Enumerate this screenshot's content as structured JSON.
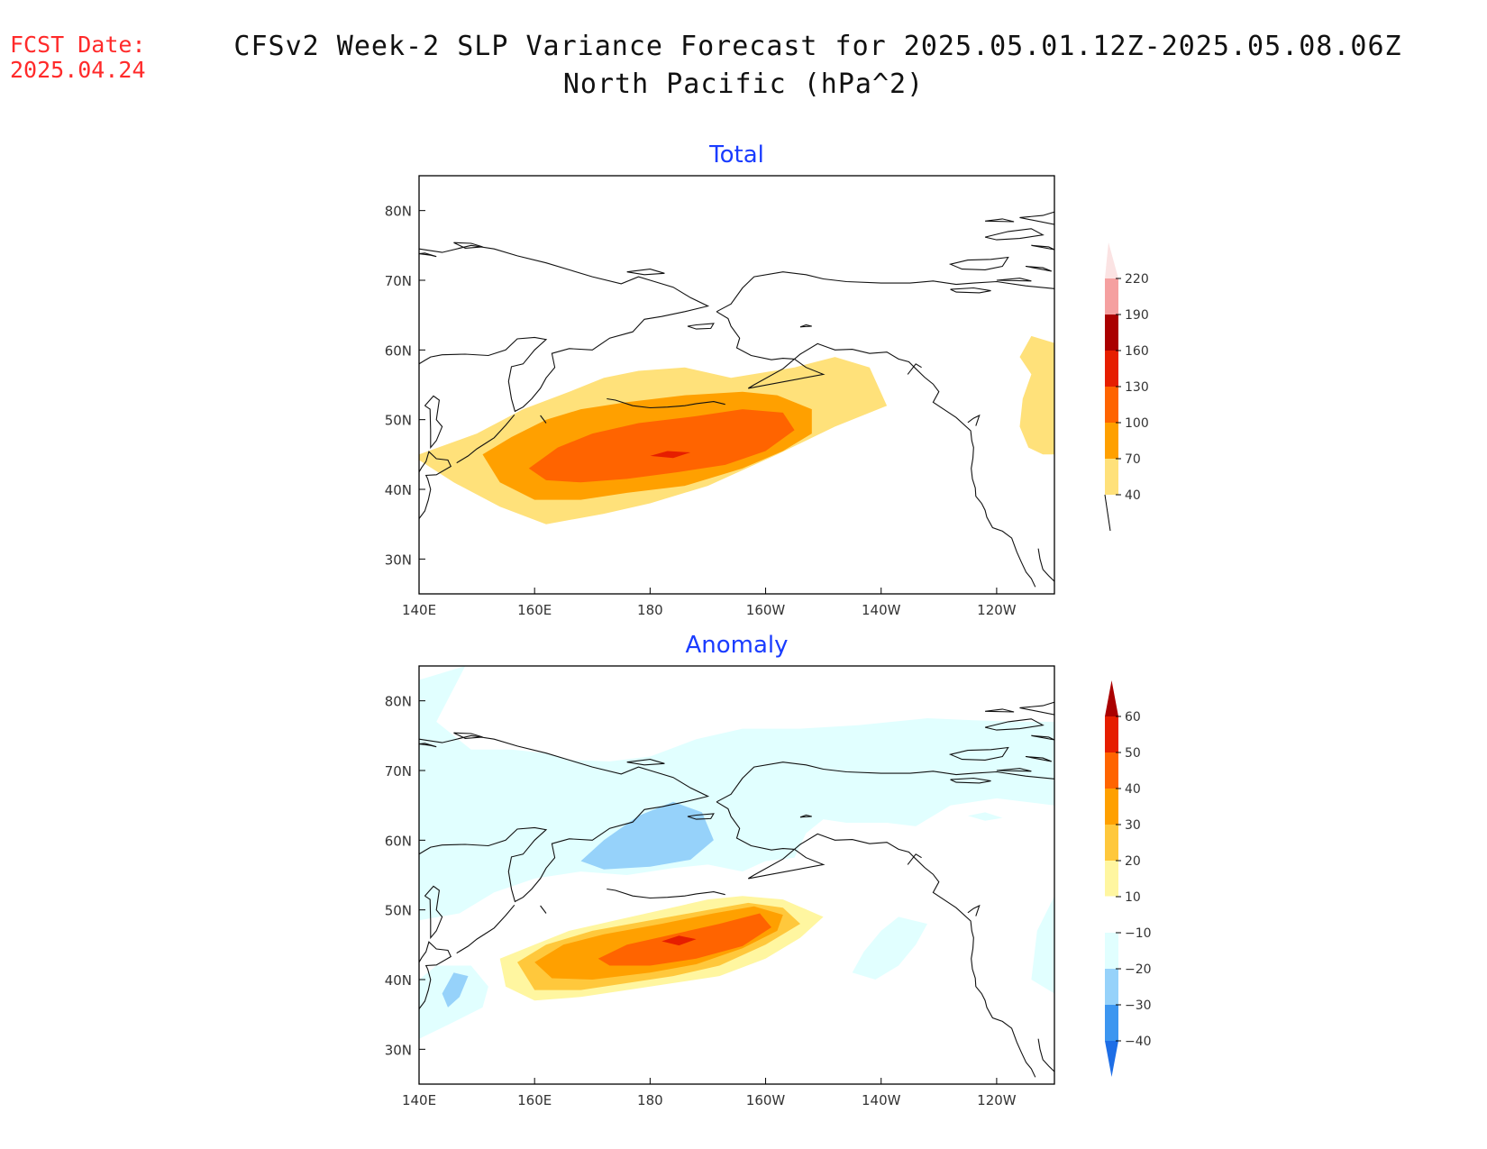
{
  "header": {
    "fcst_label": "FCST Date:",
    "fcst_date": "2025.04.24",
    "title_line1": "CFSv2 Week-2 SLP Variance Forecast for 2025.05.01.12Z-2025.05.08.06Z",
    "title_line2": "North Pacific (hPa^2)"
  },
  "axes": {
    "lat_labels": [
      "80N",
      "70N",
      "60N",
      "50N",
      "40N",
      "30N"
    ],
    "lat_values": [
      80,
      70,
      60,
      50,
      40,
      30
    ],
    "lon_labels": [
      "140E",
      "160E",
      "180",
      "160W",
      "140W",
      "120W"
    ],
    "lon_values": [
      140,
      160,
      180,
      200,
      220,
      240
    ],
    "lon_range": [
      140,
      250
    ],
    "lat_range": [
      25,
      85
    ]
  },
  "panels": [
    {
      "title": "Total",
      "colorbar": {
        "levels": [
          40,
          70,
          100,
          130,
          160,
          190,
          220
        ],
        "colors": [
          "#ffe17a",
          "#ffa000",
          "#ff6400",
          "#e61e00",
          "#aa0000",
          "#f5a0a0",
          "#fbe3e3"
        ],
        "open_below": true
      }
    },
    {
      "title": "Anomaly",
      "colorbar": {
        "levels": [
          -40,
          -30,
          -20,
          -10,
          10,
          20,
          30,
          40,
          50,
          60
        ],
        "colors": [
          "#1e6ee6",
          "#3c96f0",
          "#96d2fa",
          "#e1ffff",
          "#ffffff",
          "#fff6a0",
          "#ffc83c",
          "#ffa000",
          "#ff6400",
          "#e61e00",
          "#aa0000"
        ],
        "open_both": true
      }
    }
  ],
  "colors": {
    "title_blue": "#1a3cff",
    "fcst_red": "#ff2a2a"
  }
}
